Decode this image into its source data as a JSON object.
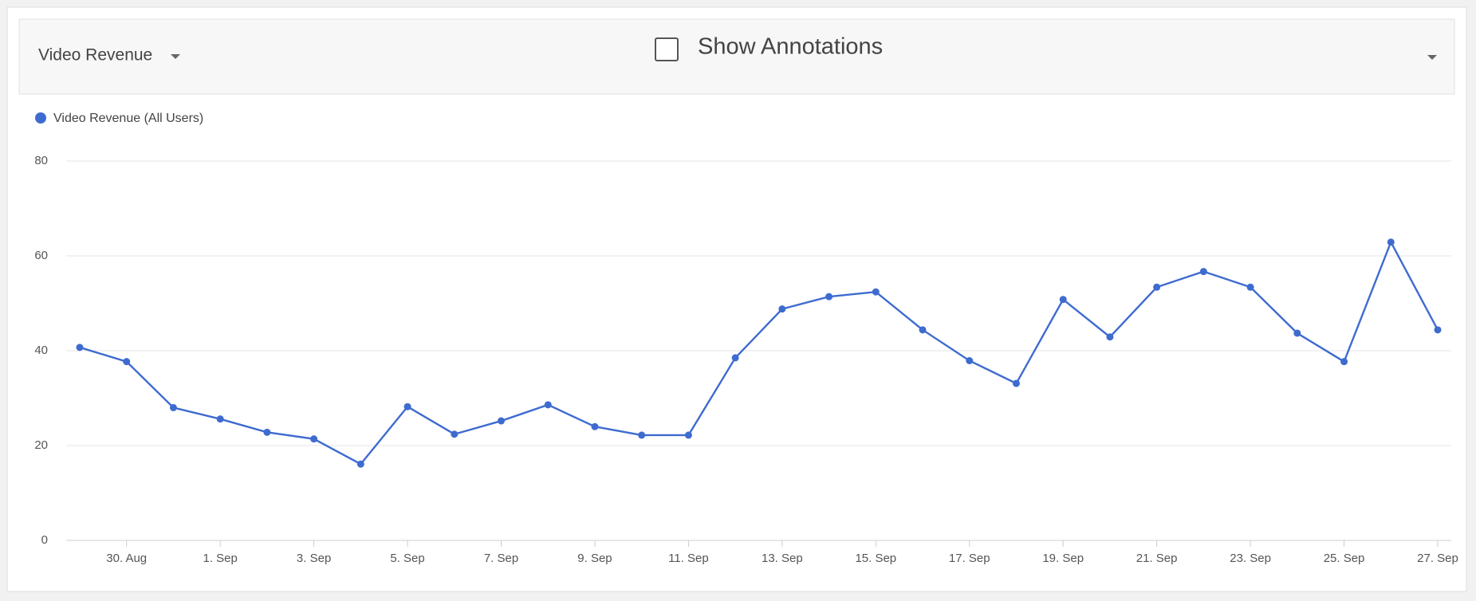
{
  "header": {
    "metric": "Video Revenue",
    "annotations": "Show Annotations"
  },
  "chart_data": {
    "type": "line",
    "categories": [
      null,
      "30. Aug",
      null,
      "1. Sep",
      null,
      "3. Sep",
      null,
      "5. Sep",
      null,
      "7. Sep",
      null,
      "9. Sep",
      null,
      "11. Sep",
      null,
      "13. Sep",
      null,
      "15. Sep",
      null,
      "17. Sep",
      null,
      "19. Sep",
      null,
      "21. Sep",
      null,
      "23. Sep",
      null,
      "25. Sep",
      null,
      "27. Sep"
    ],
    "series": [
      {
        "name": "Video Revenue (All Users)",
        "color": "#3e6bd0",
        "values": [
          40.7,
          37.7,
          28.0,
          25.6,
          22.8,
          21.4,
          16.1,
          28.2,
          22.4,
          25.2,
          28.6,
          24.0,
          22.2,
          22.2,
          38.5,
          48.8,
          51.4,
          52.4,
          44.4,
          37.9,
          33.1,
          50.8,
          42.9,
          53.4,
          56.7,
          53.4,
          43.7,
          37.7,
          62.9,
          44.4
        ]
      }
    ],
    "ylim": [
      0,
      80
    ],
    "yticks": [
      0,
      20,
      40,
      60,
      80
    ],
    "grid": true
  }
}
